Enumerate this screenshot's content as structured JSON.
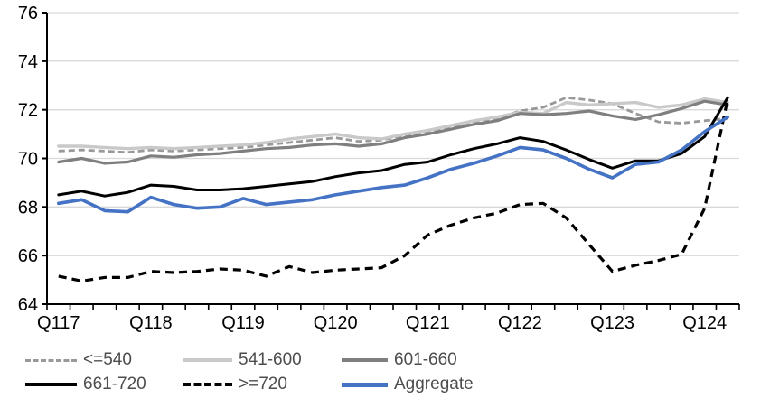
{
  "chart_data": {
    "type": "line",
    "title": "",
    "xlabel": "",
    "ylabel": "",
    "ylim": [
      64,
      76
    ],
    "ystep": 2,
    "grid": true,
    "legend_position": "bottom",
    "y_tick_labels": [
      "64",
      "66",
      "68",
      "70",
      "72",
      "74",
      "76"
    ],
    "x_axis_labels": [
      "Q117",
      "Q118",
      "Q119",
      "Q120",
      "Q121",
      "Q122",
      "Q123",
      "Q124"
    ],
    "x_label_interval": 4,
    "categories": [
      "Q1 2017",
      "Q2 2017",
      "Q3 2017",
      "Q4 2017",
      "Q1 2018",
      "Q2 2018",
      "Q3 2018",
      "Q4 2018",
      "Q1 2019",
      "Q2 2019",
      "Q3 2019",
      "Q4 2019",
      "Q1 2020",
      "Q2 2020",
      "Q3 2020",
      "Q4 2020",
      "Q1 2021",
      "Q2 2021",
      "Q3 2021",
      "Q4 2021",
      "Q1 2022",
      "Q2 2022",
      "Q3 2022",
      "Q4 2022",
      "Q1 2023",
      "Q2 2023",
      "Q3 2023",
      "Q4 2023",
      "Q1 2024",
      "Q2 2024"
    ],
    "colors": {
      "grid": "#d9d9d9",
      "axis": "#000000",
      "tick_text": "#000000",
      "legend_text": "#4d4d4d"
    },
    "series": [
      {
        "name": "<=540",
        "color": "#999999",
        "style": "dashed",
        "width": 2.8,
        "values": [
          70.3,
          70.35,
          70.3,
          70.25,
          70.35,
          70.3,
          70.35,
          70.4,
          70.45,
          70.55,
          70.65,
          70.75,
          70.85,
          70.7,
          70.75,
          70.95,
          71.1,
          71.3,
          71.5,
          71.65,
          71.95,
          72.1,
          72.5,
          72.4,
          72.25,
          71.85,
          71.5,
          71.45,
          71.55,
          71.65
        ]
      },
      {
        "name": "541-600",
        "color": "#c9c9c9",
        "style": "solid",
        "width": 3.4,
        "values": [
          70.5,
          70.5,
          70.45,
          70.4,
          70.45,
          70.4,
          70.45,
          70.5,
          70.55,
          70.65,
          70.8,
          70.9,
          71.0,
          70.85,
          70.8,
          71.0,
          71.15,
          71.35,
          71.55,
          71.7,
          71.9,
          71.85,
          72.3,
          72.2,
          72.25,
          72.3,
          72.1,
          72.2,
          72.45,
          72.3
        ]
      },
      {
        "name": "601-660",
        "color": "#7f7f7f",
        "style": "solid",
        "width": 3.2,
        "values": [
          69.85,
          70.0,
          69.8,
          69.85,
          70.1,
          70.05,
          70.15,
          70.2,
          70.3,
          70.4,
          70.45,
          70.55,
          70.6,
          70.5,
          70.6,
          70.85,
          71.0,
          71.2,
          71.4,
          71.55,
          71.85,
          71.8,
          71.85,
          71.95,
          71.75,
          71.6,
          71.8,
          72.05,
          72.35,
          72.2
        ]
      },
      {
        "name": "661-720",
        "color": "#000000",
        "style": "solid",
        "width": 3.0,
        "values": [
          68.5,
          68.65,
          68.45,
          68.6,
          68.9,
          68.85,
          68.7,
          68.7,
          68.75,
          68.85,
          68.95,
          69.05,
          69.25,
          69.4,
          69.5,
          69.75,
          69.85,
          70.15,
          70.4,
          70.6,
          70.85,
          70.7,
          70.35,
          69.95,
          69.6,
          69.9,
          69.9,
          70.2,
          70.9,
          72.5
        ]
      },
      {
        "name": ">=720",
        "color": "#000000",
        "style": "dashed-bold",
        "width": 3.2,
        "values": [
          65.15,
          64.95,
          65.1,
          65.1,
          65.35,
          65.3,
          65.35,
          65.45,
          65.4,
          65.15,
          65.55,
          65.3,
          65.4,
          65.45,
          65.5,
          66.0,
          66.85,
          67.25,
          67.55,
          67.75,
          68.1,
          68.15,
          67.55,
          66.45,
          65.35,
          65.6,
          65.8,
          66.05,
          67.95,
          72.45
        ]
      },
      {
        "name": "Aggregate",
        "color": "#4472c4",
        "style": "solid",
        "width": 3.6,
        "values": [
          68.15,
          68.3,
          67.85,
          67.8,
          68.4,
          68.1,
          67.95,
          68.0,
          68.35,
          68.1,
          68.2,
          68.3,
          68.5,
          68.65,
          68.8,
          68.9,
          69.2,
          69.55,
          69.8,
          70.1,
          70.45,
          70.35,
          70.0,
          69.55,
          69.2,
          69.75,
          69.85,
          70.35,
          71.1,
          71.7
        ]
      }
    ]
  }
}
